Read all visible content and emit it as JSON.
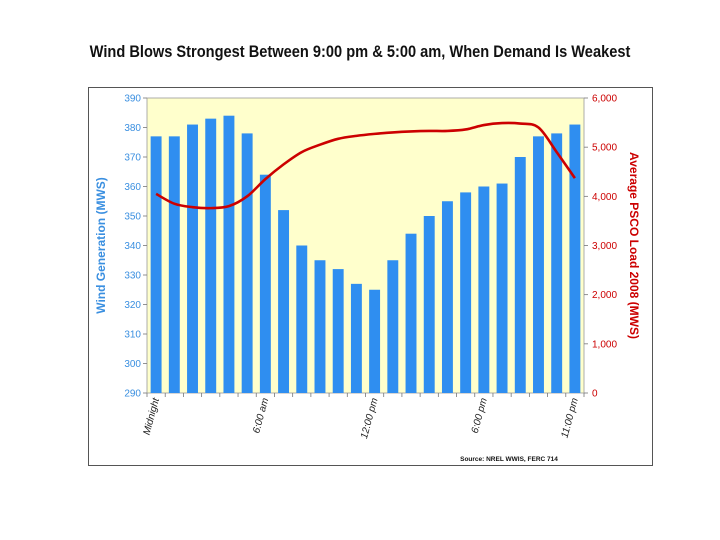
{
  "chart_data": {
    "type": "bar",
    "title": "Wind Blows Strongest Between 9:00 pm & 5:00 am, When Demand Is Weakest",
    "source": "Source: NREL WWIS, FERC 714",
    "x_tick_labels": [
      {
        "index": 0,
        "label": "Midnight"
      },
      {
        "index": 6,
        "label": "6:00 am"
      },
      {
        "index": 12,
        "label": "12:00 pm"
      },
      {
        "index": 18,
        "label": "6:00 pm"
      },
      {
        "index": 23,
        "label": "11:00 pm"
      }
    ],
    "hours": [
      0,
      1,
      2,
      3,
      4,
      5,
      6,
      7,
      8,
      9,
      10,
      11,
      12,
      13,
      14,
      15,
      16,
      17,
      18,
      19,
      20,
      21,
      22,
      23
    ],
    "left_axis": {
      "label": "Wind Generation (MWS)",
      "min": 290,
      "max": 390,
      "step": 10,
      "ticks": [
        290,
        300,
        310,
        320,
        330,
        340,
        350,
        360,
        370,
        380,
        390
      ],
      "color": "#3a8fe0"
    },
    "right_axis": {
      "label": "Average PSCO Load 2008 (MWS)",
      "min": 0,
      "max": 6000,
      "step": 1000,
      "ticks": [
        "0",
        "1,000",
        "2,000",
        "3,000",
        "4,000",
        "5,000",
        "6,000"
      ],
      "color": "#cc0000"
    },
    "series": [
      {
        "name": "Wind Generation (MWS)",
        "kind": "bar",
        "axis": "left",
        "color": "#2f8ef0",
        "values": [
          377,
          377,
          381,
          383,
          384,
          378,
          364,
          352,
          340,
          335,
          332,
          327,
          325,
          335,
          344,
          350,
          355,
          358,
          360,
          361,
          370,
          377,
          378,
          381
        ]
      },
      {
        "name": "Average PSCO Load 2008 (MWS)",
        "kind": "line",
        "axis": "right",
        "color": "#cc0000",
        "values": [
          4050,
          3850,
          3780,
          3760,
          3800,
          4000,
          4350,
          4650,
          4900,
          5050,
          5170,
          5230,
          5270,
          5300,
          5320,
          5330,
          5330,
          5360,
          5450,
          5490,
          5480,
          5400,
          4900,
          4370
        ]
      }
    ],
    "plot_background": "#ffffcc",
    "grid": false
  }
}
